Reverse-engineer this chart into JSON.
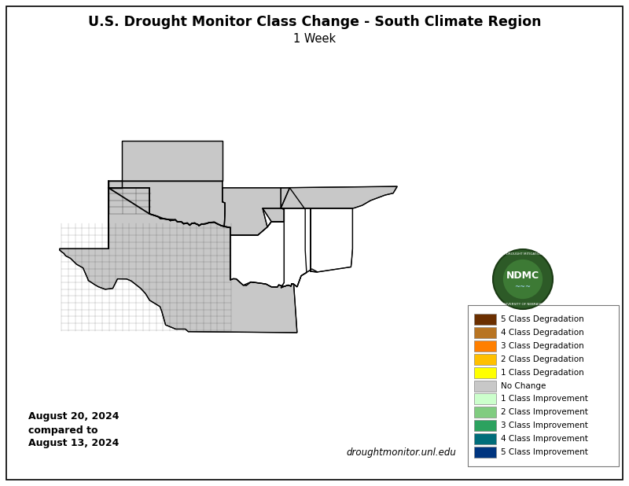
{
  "title_line1": "U.S. Drought Monitor Class Change - South Climate Region",
  "title_line2": "1 Week",
  "date_line1": "August 20, 2024",
  "date_line2": "compared to",
  "date_line3": "August 13, 2024",
  "website_text": "droughtmonitor.unl.edu",
  "legend_entries": [
    {
      "label": "5 Class Degradation",
      "color": "#6b2f00"
    },
    {
      "label": "4 Class Degradation",
      "color": "#b87422"
    },
    {
      "label": "3 Class Degradation",
      "color": "#ff7f00"
    },
    {
      "label": "2 Class Degradation",
      "color": "#ffc000"
    },
    {
      "label": "1 Class Degradation",
      "color": "#ffff00"
    },
    {
      "label": "No Change",
      "color": "#c8c8c8"
    },
    {
      "label": "1 Class Improvement",
      "color": "#ccffcc"
    },
    {
      "label": "2 Class Improvement",
      "color": "#80cc80"
    },
    {
      "label": "3 Class Improvement",
      "color": "#2ca25f"
    },
    {
      "label": "4 Class Improvement",
      "color": "#006d7a"
    },
    {
      "label": "5 Class Improvement",
      "color": "#003580"
    }
  ],
  "fig_width": 8.0,
  "fig_height": 6.18,
  "dpi": 100,
  "bg_color": "#ffffff",
  "border_color": "#000000",
  "title_fontsize": 12.5,
  "subtitle_fontsize": 10.5,
  "legend_fontsize": 7.5,
  "date_fontsize": 9,
  "website_fontsize": 8.5
}
